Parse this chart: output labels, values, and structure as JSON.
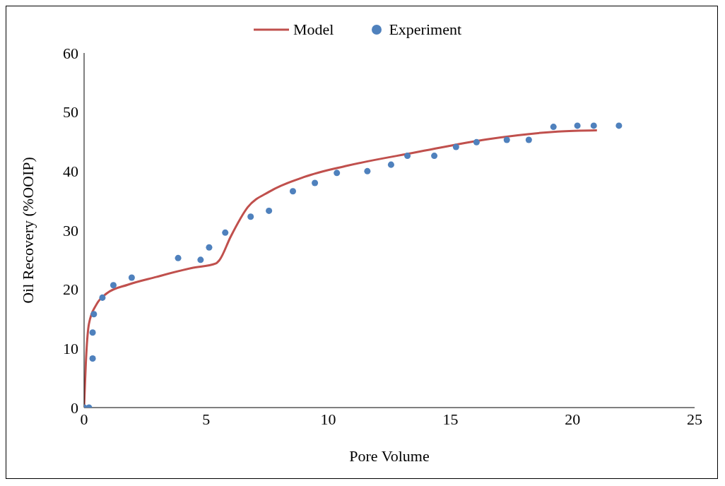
{
  "chart_data": {
    "type": "scatter",
    "xlabel": "Pore Volume",
    "ylabel": "Oil Recovery (%OOIP)",
    "xlim": [
      0,
      25
    ],
    "xticks": [
      0,
      5,
      10,
      15,
      20,
      25
    ],
    "ylim": [
      0,
      60
    ],
    "yticks": [
      0,
      10,
      20,
      30,
      40,
      50,
      60
    ],
    "grid": false,
    "legend": "top",
    "series": [
      {
        "name": "Model",
        "type": "line",
        "color": "#c0504d",
        "marker": "none",
        "line_style": "solid",
        "x": [
          0,
          0.09,
          0.2,
          0.5,
          0.92,
          1.8,
          2.95,
          4.4,
          5.4,
          5.55,
          6,
          6.7,
          7.57,
          9,
          10.75,
          13.6,
          16.5,
          19.4,
          21
        ],
        "values": [
          0,
          9,
          14.2,
          17.4,
          19.3,
          20.8,
          22.1,
          23.6,
          24.4,
          25,
          28.9,
          33.9,
          36.5,
          39,
          40.9,
          43.2,
          45.4,
          46.7,
          46.9
        ]
      },
      {
        "name": "Experiment",
        "color": "#4f81bd",
        "marker": "circle",
        "x": [
          0,
          0.2,
          0.35,
          0.35,
          0.4,
          0.75,
          1.2,
          1.95,
          3.85,
          4.77,
          5.12,
          5.78,
          6.82,
          7.57,
          8.55,
          9.45,
          10.35,
          11.6,
          12.57,
          13.24,
          14.34,
          15.23,
          16.07,
          17.31,
          18.21,
          19.22,
          20.2,
          20.87,
          21.9
        ],
        "values": [
          0,
          0,
          8.3,
          12.7,
          15.8,
          18.6,
          20.7,
          22,
          25.3,
          25,
          27.1,
          29.6,
          32.3,
          33.3,
          36.6,
          38,
          39.7,
          40,
          41.1,
          42.6,
          42.6,
          44.1,
          44.9,
          45.3,
          45.3,
          47.5,
          47.7,
          47.7,
          47.7
        ]
      }
    ]
  }
}
